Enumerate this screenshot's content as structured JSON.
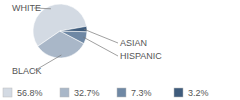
{
  "chart_data": {
    "type": "pie",
    "categories": [
      "WHITE",
      "BLACK",
      "HISPANIC",
      "ASIAN"
    ],
    "values": [
      56.8,
      32.7,
      7.3,
      3.2
    ],
    "value_labels": [
      "56.8%",
      "32.7%",
      "7.3%",
      "3.2%"
    ],
    "colors": [
      "#d3dae3",
      "#a9b7c8",
      "#6f88a4",
      "#3f5c7c"
    ],
    "legend": "bottom"
  }
}
